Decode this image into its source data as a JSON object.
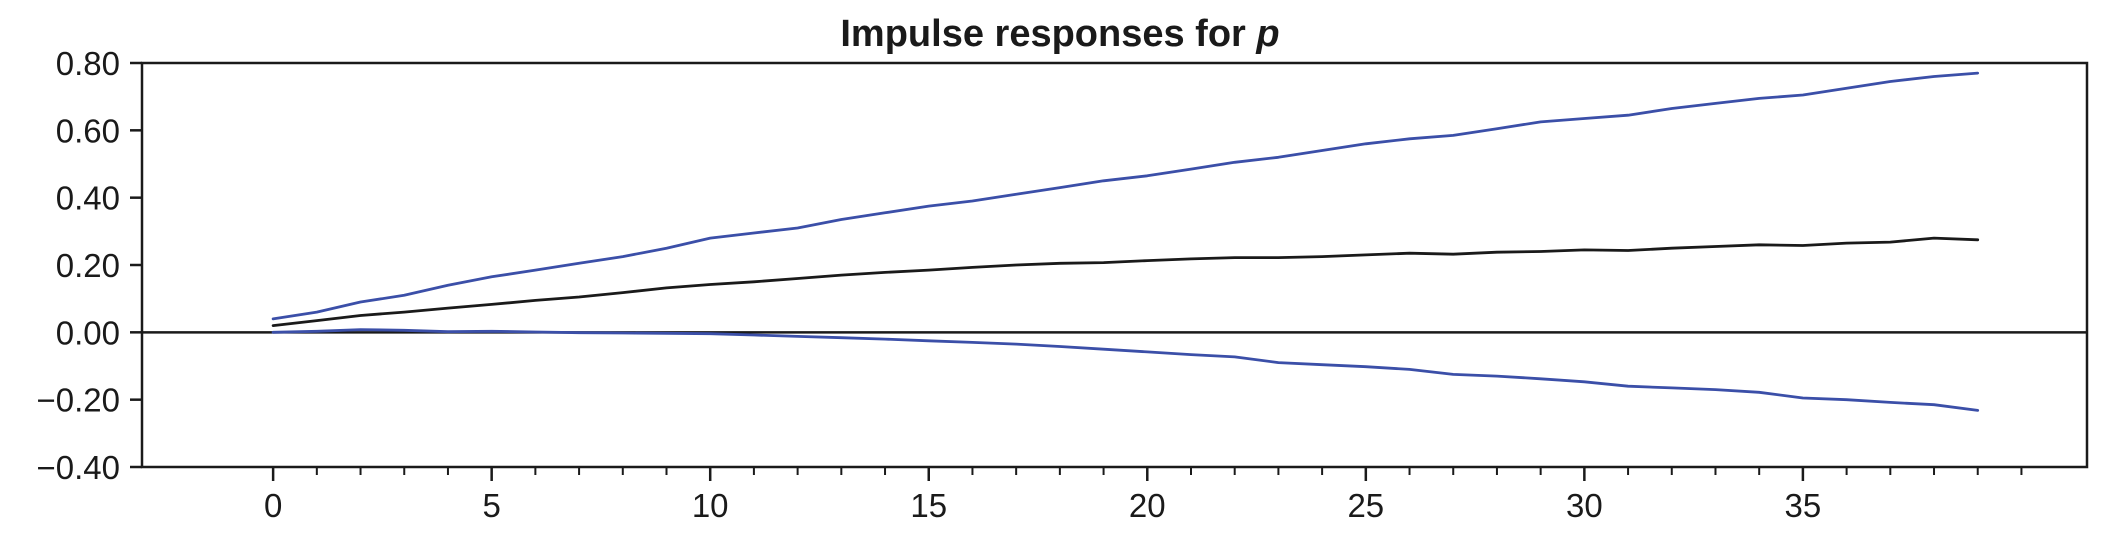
{
  "chart_data": {
    "type": "line",
    "title": "Impulse responses for ",
    "title_var": "p",
    "xlabel": "",
    "ylabel": "",
    "xlim": [
      -3,
      41.5
    ],
    "ylim": [
      -0.4,
      0.8
    ],
    "x_ticks": [
      0,
      5,
      10,
      15,
      20,
      25,
      30,
      35
    ],
    "y_ticks": [
      0.8,
      0.6,
      0.4,
      0.2,
      0.0,
      -0.2,
      -0.4
    ],
    "y_tick_labels": [
      "0.80",
      "0.60",
      "0.40",
      "0.20",
      "0.00",
      "−0.20",
      "−0.40"
    ],
    "zero_line": true,
    "grid": false,
    "legend": "none",
    "colors": {
      "point_estimate": "#1a1a1a",
      "bands": "#3b4fa8"
    },
    "x": [
      0,
      1,
      2,
      3,
      4,
      5,
      6,
      7,
      8,
      9,
      10,
      11,
      12,
      13,
      14,
      15,
      16,
      17,
      18,
      19,
      20,
      21,
      22,
      23,
      24,
      25,
      26,
      27,
      28,
      29,
      30,
      31,
      32,
      33,
      34,
      35,
      36,
      37,
      38,
      39
    ],
    "series": [
      {
        "role": "upper",
        "values": [
          0.04,
          0.06,
          0.09,
          0.11,
          0.14,
          0.165,
          0.185,
          0.205,
          0.225,
          0.25,
          0.28,
          0.295,
          0.31,
          0.335,
          0.355,
          0.375,
          0.39,
          0.41,
          0.43,
          0.45,
          0.465,
          0.485,
          0.505,
          0.52,
          0.54,
          0.56,
          0.575,
          0.585,
          0.605,
          0.625,
          0.635,
          0.645,
          0.665,
          0.68,
          0.695,
          0.705,
          0.725,
          0.745,
          0.76,
          0.77
        ]
      },
      {
        "role": "point",
        "values": [
          0.02,
          0.035,
          0.05,
          0.06,
          0.072,
          0.083,
          0.095,
          0.105,
          0.118,
          0.132,
          0.142,
          0.15,
          0.16,
          0.17,
          0.178,
          0.185,
          0.193,
          0.2,
          0.205,
          0.207,
          0.213,
          0.218,
          0.222,
          0.222,
          0.225,
          0.23,
          0.235,
          0.232,
          0.238,
          0.24,
          0.245,
          0.243,
          0.25,
          0.255,
          0.26,
          0.258,
          0.265,
          0.268,
          0.28,
          0.275
        ]
      },
      {
        "role": "lower",
        "values": [
          0.0,
          0.003,
          0.008,
          0.006,
          0.002,
          0.003,
          0.001,
          -0.001,
          -0.002,
          -0.003,
          -0.004,
          -0.008,
          -0.012,
          -0.016,
          -0.02,
          -0.025,
          -0.03,
          -0.035,
          -0.042,
          -0.05,
          -0.058,
          -0.066,
          -0.073,
          -0.09,
          -0.096,
          -0.102,
          -0.11,
          -0.125,
          -0.13,
          -0.138,
          -0.147,
          -0.16,
          -0.165,
          -0.17,
          -0.178,
          -0.195,
          -0.2,
          -0.208,
          -0.215,
          -0.232
        ]
      }
    ]
  }
}
